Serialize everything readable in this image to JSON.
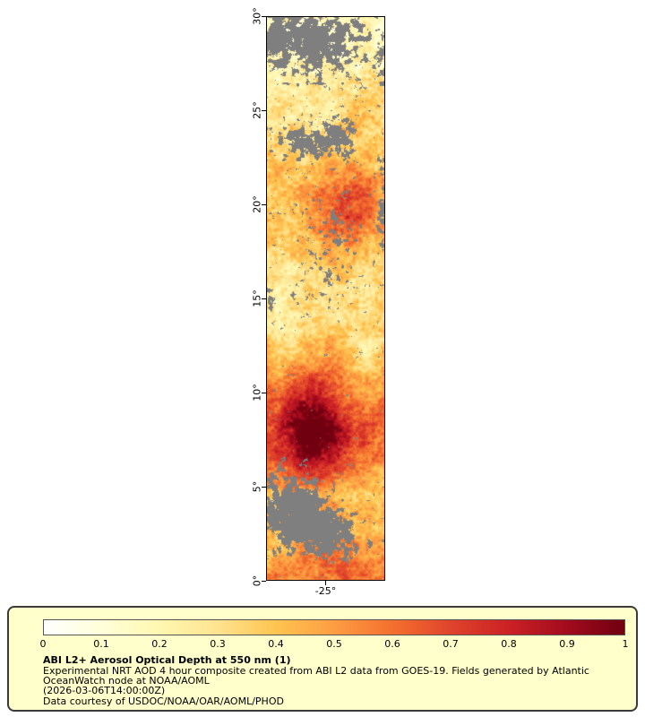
{
  "page": {
    "background": "#ffffff"
  },
  "map": {
    "y_ticks": [
      {
        "label": "30°",
        "lat": 30
      },
      {
        "label": "25°",
        "lat": 25
      },
      {
        "label": "20°",
        "lat": 20
      },
      {
        "label": "15°",
        "lat": 15
      },
      {
        "label": "10°",
        "lat": 10
      },
      {
        "label": "5°",
        "lat": 5
      },
      {
        "label": "0°",
        "lat": 0
      }
    ],
    "x_ticks": [
      {
        "label": "-25°",
        "frac": 0.5
      }
    ],
    "missing_data_color": "#7f7f7f"
  },
  "legend": {
    "background": "#ffffcc",
    "title": "ABI L2+ Aerosol Optical Depth at 550 nm (1)",
    "lines": [
      "Experimental NRT AOD 4 hour composite created from ABI L2 data from GOES-19. Fields generated by Atlantic",
      "OceanWatch node at NOAA/AOML",
      "(2026-03-06T14:00:00Z)",
      "Data courtesy of USDOC/NOAA/OAR/AOML/PHOD"
    ]
  },
  "chart_data": {
    "type": "heatmap",
    "title": "ABI L2+ Aerosol Optical Depth at 550 nm (1)",
    "y_axis": {
      "tick_labels": [
        "30°",
        "25°",
        "20°",
        "15°",
        "10°",
        "5°",
        "0°"
      ],
      "range_deg": [
        0,
        30
      ]
    },
    "x_axis": {
      "tick_labels": [
        "-25°"
      ]
    },
    "colorbar": {
      "min": 0,
      "max": 1,
      "tick_labels": [
        "0",
        "0.1",
        "0.2",
        "0.3",
        "0.4",
        "0.5",
        "0.6",
        "0.7",
        "0.8",
        "0.9",
        "1"
      ],
      "gradient_stops": [
        {
          "pos": 0,
          "color": "#ffffff"
        },
        {
          "pos": 0.1,
          "color": "#ffffd9"
        },
        {
          "pos": 0.2,
          "color": "#fff7b0"
        },
        {
          "pos": 0.3,
          "color": "#fee38f"
        },
        {
          "pos": 0.4,
          "color": "#fec44f"
        },
        {
          "pos": 0.5,
          "color": "#fd9d43"
        },
        {
          "pos": 0.6,
          "color": "#f4702e"
        },
        {
          "pos": 0.7,
          "color": "#e0442c"
        },
        {
          "pos": 0.8,
          "color": "#cc2125"
        },
        {
          "pos": 0.9,
          "color": "#a30b1e"
        },
        {
          "pos": 1,
          "color": "#70000f"
        }
      ],
      "missing_color": "#7f7f7f"
    },
    "observed_features": {
      "highest_aod_region": "dark red plume near 6°–13° latitude, AOD approaching 1",
      "secondary_red_region": "near 17°–21° latitude, AOD ~0.6–0.8",
      "gray_areas": "missing data/cloud patches near 0°–5°, 21°–23° and 27°–30°"
    }
  }
}
